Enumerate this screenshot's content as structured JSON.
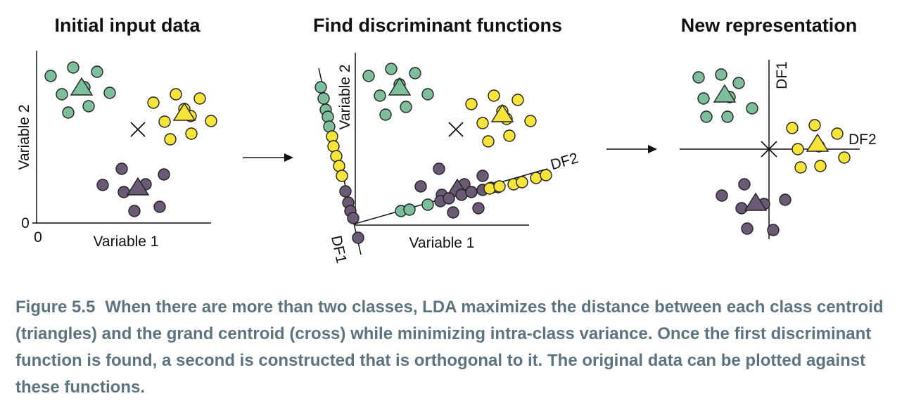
{
  "panels": {
    "p1": {
      "title": "Initial input data",
      "xlabel": "Variable 1",
      "ylabel": "Variable 2",
      "x_origin": "0",
      "y_origin": "0"
    },
    "p2": {
      "title": "Find discriminant functions",
      "xlabel": "Variable 1",
      "ylabel": "Variable 2",
      "df1": "DF1",
      "df2": "DF2"
    },
    "p3": {
      "title": "New representation",
      "df1": "DF1",
      "df2": "DF2"
    }
  },
  "caption": {
    "label": "Figure 5.5",
    "text": "When there are more than two classes, LDA maximizes the distance between each class centroid (triangles) and the grand centroid (cross) while minimizing intra-class variance. Once the first discriminant function is found, a second is constructed that is orthogonal to it. The original data can be plotted against these functions."
  },
  "colors": {
    "green": "#7dbf9c",
    "yellow": "#f6e43a",
    "purple": "#6b5a76",
    "stroke": "#222222",
    "caption": "#5d7480"
  }
}
